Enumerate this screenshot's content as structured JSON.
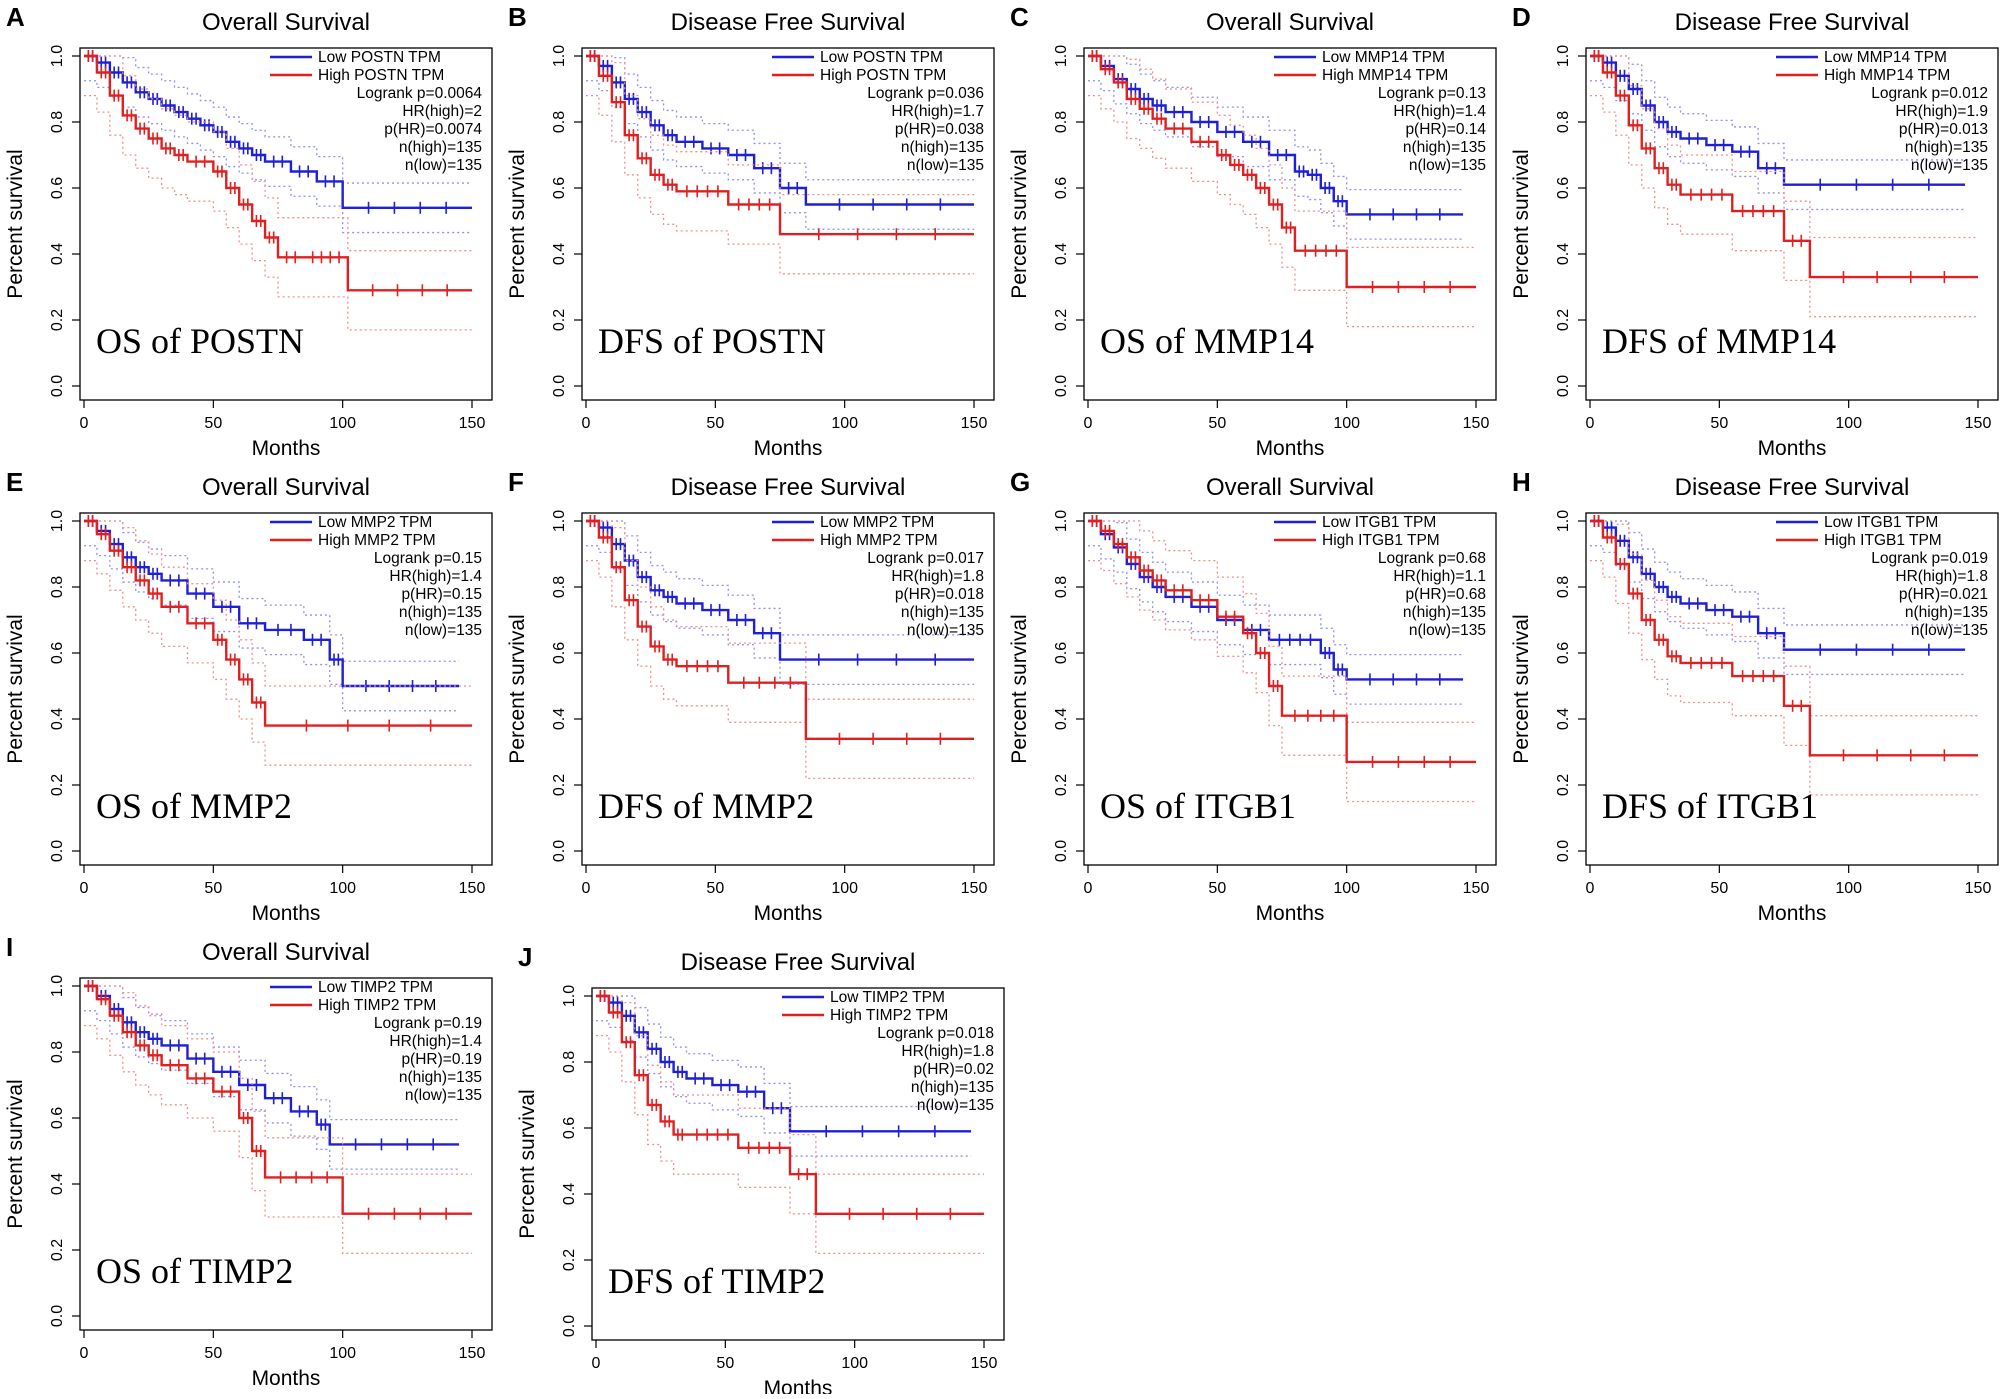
{
  "figure": {
    "colors": {
      "low": "#1f1fd6",
      "high": "#e02020",
      "low_ci": "#8f8ff0",
      "high_ci": "#f08f8f"
    }
  },
  "chart_data": [
    {
      "type": "line",
      "panel": "A",
      "title": "Overall Survival",
      "overlay": "OS of POSTN",
      "xlabel": "Months",
      "ylabel": "Percent survival",
      "xlim": [
        0,
        150
      ],
      "ylim": [
        0,
        1
      ],
      "xticks": [
        "0",
        "50",
        "100",
        "150"
      ],
      "yticks": [
        "0.0",
        "0.2",
        "0.4",
        "0.6",
        "0.8",
        "1.0"
      ],
      "legend": [
        "Low POSTN TPM",
        "High POSTN TPM"
      ],
      "stats": [
        "Logrank p=0.0064",
        "HR(high)=2",
        "p(HR)=0.0074",
        "n(high)=135",
        "n(low)=135"
      ],
      "series": [
        {
          "name": "Low POSTN TPM",
          "x": [
            0,
            5,
            10,
            15,
            20,
            25,
            30,
            35,
            40,
            45,
            50,
            55,
            60,
            65,
            70,
            80,
            90,
            100,
            150
          ],
          "values": [
            1,
            0.98,
            0.95,
            0.92,
            0.89,
            0.87,
            0.85,
            0.83,
            0.81,
            0.79,
            0.77,
            0.74,
            0.72,
            0.7,
            0.68,
            0.65,
            0.62,
            0.54,
            0.54
          ]
        },
        {
          "name": "High POSTN TPM",
          "x": [
            0,
            5,
            10,
            15,
            20,
            25,
            30,
            35,
            40,
            50,
            55,
            60,
            65,
            70,
            75,
            85,
            102,
            150
          ],
          "values": [
            1,
            0.95,
            0.88,
            0.82,
            0.78,
            0.75,
            0.72,
            0.7,
            0.68,
            0.65,
            0.6,
            0.55,
            0.5,
            0.45,
            0.39,
            0.39,
            0.29,
            0.29
          ]
        }
      ]
    },
    {
      "type": "line",
      "panel": "B",
      "title": "Disease Free Survival",
      "overlay": "DFS of POSTN",
      "xlabel": "Months",
      "ylabel": "Percent survival",
      "xlim": [
        0,
        150
      ],
      "ylim": [
        0,
        1
      ],
      "xticks": [
        "0",
        "50",
        "100",
        "150"
      ],
      "yticks": [
        "0.0",
        "0.2",
        "0.4",
        "0.6",
        "0.8",
        "1.0"
      ],
      "legend": [
        "Low POSTN TPM",
        "High POSTN TPM"
      ],
      "stats": [
        "Logrank p=0.036",
        "HR(high)=1.7",
        "p(HR)=0.038",
        "n(high)=135",
        "n(low)=135"
      ],
      "series": [
        {
          "name": "Low POSTN TPM",
          "x": [
            0,
            5,
            10,
            15,
            20,
            25,
            30,
            35,
            45,
            55,
            65,
            75,
            85,
            150
          ],
          "values": [
            1,
            0.97,
            0.92,
            0.87,
            0.83,
            0.79,
            0.76,
            0.74,
            0.72,
            0.7,
            0.66,
            0.6,
            0.55,
            0.55
          ]
        },
        {
          "name": "High POSTN TPM",
          "x": [
            0,
            5,
            10,
            15,
            20,
            25,
            30,
            35,
            55,
            75,
            150
          ],
          "values": [
            1,
            0.94,
            0.86,
            0.76,
            0.69,
            0.64,
            0.61,
            0.59,
            0.55,
            0.46,
            0.46
          ]
        }
      ]
    },
    {
      "type": "line",
      "panel": "C",
      "title": "Overall Survival",
      "overlay": "OS of MMP14",
      "xlabel": "Months",
      "ylabel": "Percent survival",
      "xlim": [
        0,
        150
      ],
      "ylim": [
        0,
        1
      ],
      "xticks": [
        "0",
        "50",
        "100",
        "150"
      ],
      "yticks": [
        "0.0",
        "0.2",
        "0.4",
        "0.6",
        "0.8",
        "1.0"
      ],
      "legend": [
        "Low MMP14 TPM",
        "High MMP14 TPM"
      ],
      "stats": [
        "Logrank p=0.13",
        "HR(high)=1.4",
        "p(HR)=0.14",
        "n(high)=135",
        "n(low)=135"
      ],
      "series": [
        {
          "name": "Low MMP14 TPM",
          "x": [
            0,
            5,
            10,
            15,
            20,
            25,
            30,
            40,
            50,
            60,
            70,
            80,
            85,
            90,
            95,
            100,
            145
          ],
          "values": [
            1,
            0.97,
            0.93,
            0.9,
            0.87,
            0.85,
            0.83,
            0.8,
            0.77,
            0.74,
            0.7,
            0.65,
            0.64,
            0.6,
            0.56,
            0.52,
            0.52
          ]
        },
        {
          "name": "High MMP14 TPM",
          "x": [
            0,
            5,
            10,
            15,
            20,
            25,
            30,
            40,
            50,
            55,
            60,
            65,
            70,
            75,
            80,
            100,
            150
          ],
          "values": [
            1,
            0.96,
            0.92,
            0.87,
            0.84,
            0.81,
            0.78,
            0.74,
            0.7,
            0.67,
            0.64,
            0.6,
            0.55,
            0.48,
            0.41,
            0.3,
            0.3
          ]
        }
      ]
    },
    {
      "type": "line",
      "panel": "D",
      "title": "Disease Free Survival",
      "overlay": "DFS of MMP14",
      "xlabel": "Months",
      "ylabel": "Percent survival",
      "xlim": [
        0,
        150
      ],
      "ylim": [
        0,
        1
      ],
      "xticks": [
        "0",
        "50",
        "100",
        "150"
      ],
      "yticks": [
        "0.0",
        "0.2",
        "0.4",
        "0.6",
        "0.8",
        "1.0"
      ],
      "legend": [
        "Low MMP14 TPM",
        "High MMP14 TPM"
      ],
      "stats": [
        "Logrank p=0.012",
        "HR(high)=1.9",
        "p(HR)=0.013",
        "n(high)=135",
        "n(low)=135"
      ],
      "series": [
        {
          "name": "Low MMP14 TPM",
          "x": [
            0,
            5,
            10,
            15,
            20,
            25,
            30,
            35,
            45,
            55,
            65,
            75,
            145
          ],
          "values": [
            1,
            0.98,
            0.94,
            0.9,
            0.85,
            0.8,
            0.77,
            0.75,
            0.73,
            0.71,
            0.66,
            0.61,
            0.61
          ]
        },
        {
          "name": "High MMP14 TPM",
          "x": [
            0,
            5,
            10,
            15,
            20,
            25,
            30,
            35,
            55,
            75,
            85,
            150
          ],
          "values": [
            1,
            0.95,
            0.88,
            0.79,
            0.72,
            0.66,
            0.61,
            0.58,
            0.53,
            0.44,
            0.33,
            0.33
          ]
        }
      ]
    },
    {
      "type": "line",
      "panel": "E",
      "title": "Overall Survival",
      "overlay": "OS of MMP2",
      "xlabel": "Months",
      "ylabel": "Percent survival",
      "xlim": [
        0,
        150
      ],
      "ylim": [
        0,
        1
      ],
      "xticks": [
        "0",
        "50",
        "100",
        "150"
      ],
      "yticks": [
        "0.0",
        "0.2",
        "0.4",
        "0.6",
        "0.8",
        "1.0"
      ],
      "legend": [
        "Low MMP2 TPM",
        "High MMP2 TPM"
      ],
      "stats": [
        "Logrank p=0.15",
        "HR(high)=1.4",
        "p(HR)=0.15",
        "n(high)=135",
        "n(low)=135"
      ],
      "series": [
        {
          "name": "Low MMP2 TPM",
          "x": [
            0,
            5,
            10,
            15,
            20,
            25,
            30,
            40,
            50,
            60,
            70,
            85,
            95,
            100,
            145
          ],
          "values": [
            1,
            0.97,
            0.93,
            0.89,
            0.86,
            0.84,
            0.82,
            0.78,
            0.74,
            0.69,
            0.67,
            0.64,
            0.58,
            0.5,
            0.5
          ]
        },
        {
          "name": "High MMP2 TPM",
          "x": [
            0,
            5,
            10,
            15,
            20,
            25,
            30,
            40,
            50,
            55,
            60,
            65,
            70,
            150
          ],
          "values": [
            1,
            0.96,
            0.91,
            0.86,
            0.82,
            0.78,
            0.74,
            0.69,
            0.64,
            0.58,
            0.52,
            0.45,
            0.38,
            0.38
          ]
        }
      ]
    },
    {
      "type": "line",
      "panel": "F",
      "title": "Disease Free Survival",
      "overlay": "DFS of MMP2",
      "xlabel": "Months",
      "ylabel": "Percent survival",
      "xlim": [
        0,
        150
      ],
      "ylim": [
        0,
        1
      ],
      "xticks": [
        "0",
        "50",
        "100",
        "150"
      ],
      "yticks": [
        "0.0",
        "0.2",
        "0.4",
        "0.6",
        "0.8",
        "1.0"
      ],
      "legend": [
        "Low MMP2 TPM",
        "High MMP2 TPM"
      ],
      "stats": [
        "Logrank p=0.017",
        "HR(high)=1.8",
        "p(HR)=0.018",
        "n(high)=135",
        "n(low)=135"
      ],
      "series": [
        {
          "name": "Low MMP2 TPM",
          "x": [
            0,
            5,
            10,
            15,
            20,
            25,
            30,
            35,
            45,
            55,
            65,
            75,
            150
          ],
          "values": [
            1,
            0.98,
            0.93,
            0.88,
            0.83,
            0.79,
            0.77,
            0.75,
            0.73,
            0.7,
            0.66,
            0.58,
            0.58
          ]
        },
        {
          "name": "High MMP2 TPM",
          "x": [
            0,
            5,
            10,
            15,
            20,
            25,
            30,
            35,
            55,
            85,
            150
          ],
          "values": [
            1,
            0.95,
            0.86,
            0.76,
            0.68,
            0.62,
            0.58,
            0.56,
            0.51,
            0.34,
            0.34
          ]
        }
      ]
    },
    {
      "type": "line",
      "panel": "G",
      "title": "Overall Survival",
      "overlay": "OS of ITGB1",
      "xlabel": "Months",
      "ylabel": "Percent survival",
      "xlim": [
        0,
        150
      ],
      "ylim": [
        0,
        1
      ],
      "xticks": [
        "0",
        "50",
        "100",
        "150"
      ],
      "yticks": [
        "0.0",
        "0.2",
        "0.4",
        "0.6",
        "0.8",
        "1.0"
      ],
      "legend": [
        "Low ITGB1 TPM",
        "High ITGB1 TPM"
      ],
      "stats": [
        "Logrank p=0.68",
        "HR(high)=1.1",
        "p(HR)=0.68",
        "n(high)=135",
        "n(low)=135"
      ],
      "series": [
        {
          "name": "Low ITGB1 TPM",
          "x": [
            0,
            5,
            10,
            15,
            20,
            25,
            30,
            40,
            50,
            60,
            70,
            90,
            95,
            100,
            145
          ],
          "values": [
            1,
            0.96,
            0.92,
            0.87,
            0.83,
            0.8,
            0.77,
            0.74,
            0.7,
            0.67,
            0.64,
            0.6,
            0.55,
            0.52,
            0.52
          ]
        },
        {
          "name": "High ITGB1 TPM",
          "x": [
            0,
            5,
            10,
            15,
            20,
            25,
            30,
            40,
            50,
            60,
            65,
            70,
            75,
            100,
            150
          ],
          "values": [
            1,
            0.97,
            0.93,
            0.89,
            0.85,
            0.82,
            0.79,
            0.76,
            0.71,
            0.66,
            0.6,
            0.5,
            0.41,
            0.27,
            0.27
          ]
        }
      ]
    },
    {
      "type": "line",
      "panel": "H",
      "title": "Disease Free Survival",
      "overlay": "DFS of ITGB1",
      "xlabel": "Months",
      "ylabel": "Percent survival",
      "xlim": [
        0,
        150
      ],
      "ylim": [
        0,
        1
      ],
      "xticks": [
        "0",
        "50",
        "100",
        "150"
      ],
      "yticks": [
        "0.0",
        "0.2",
        "0.4",
        "0.6",
        "0.8",
        "1.0"
      ],
      "legend": [
        "Low ITGB1 TPM",
        "High ITGB1 TPM"
      ],
      "stats": [
        "Logrank p=0.019",
        "HR(high)=1.8",
        "p(HR)=0.021",
        "n(high)=135",
        "n(low)=135"
      ],
      "series": [
        {
          "name": "Low ITGB1 TPM",
          "x": [
            0,
            5,
            10,
            15,
            20,
            25,
            30,
            35,
            45,
            55,
            65,
            75,
            145
          ],
          "values": [
            1,
            0.98,
            0.94,
            0.89,
            0.84,
            0.8,
            0.77,
            0.75,
            0.73,
            0.71,
            0.66,
            0.61,
            0.61
          ]
        },
        {
          "name": "High ITGB1 TPM",
          "x": [
            0,
            5,
            10,
            15,
            20,
            25,
            30,
            35,
            55,
            75,
            85,
            150
          ],
          "values": [
            1,
            0.95,
            0.87,
            0.78,
            0.7,
            0.64,
            0.59,
            0.57,
            0.53,
            0.44,
            0.29,
            0.29
          ]
        }
      ]
    },
    {
      "type": "line",
      "panel": "I",
      "title": "Overall Survival",
      "overlay": "OS of TIMP2",
      "xlabel": "Months",
      "ylabel": "Percent survival",
      "xlim": [
        0,
        150
      ],
      "ylim": [
        0,
        1
      ],
      "xticks": [
        "0",
        "50",
        "100",
        "150"
      ],
      "yticks": [
        "0.0",
        "0.2",
        "0.4",
        "0.6",
        "0.8",
        "1.0"
      ],
      "legend": [
        "Low TIMP2 TPM",
        "High TIMP2 TPM"
      ],
      "stats": [
        "Logrank p=0.19",
        "HR(high)=1.4",
        "p(HR)=0.19",
        "n(high)=135",
        "n(low)=135"
      ],
      "series": [
        {
          "name": "Low TIMP2 TPM",
          "x": [
            0,
            5,
            10,
            15,
            20,
            25,
            30,
            40,
            50,
            60,
            70,
            80,
            90,
            95,
            145
          ],
          "values": [
            1,
            0.97,
            0.93,
            0.89,
            0.86,
            0.84,
            0.82,
            0.78,
            0.74,
            0.7,
            0.66,
            0.62,
            0.58,
            0.52,
            0.52
          ]
        },
        {
          "name": "High TIMP2 TPM",
          "x": [
            0,
            5,
            10,
            15,
            20,
            25,
            30,
            40,
            50,
            60,
            65,
            70,
            100,
            150
          ],
          "values": [
            1,
            0.96,
            0.91,
            0.86,
            0.82,
            0.79,
            0.76,
            0.72,
            0.68,
            0.6,
            0.5,
            0.42,
            0.31,
            0.31
          ]
        }
      ]
    },
    {
      "type": "line",
      "panel": "J",
      "title": "Disease Free Survival",
      "overlay": "DFS of TIMP2",
      "xlabel": "Months",
      "ylabel": "Percent survival",
      "xlim": [
        0,
        150
      ],
      "ylim": [
        0,
        1
      ],
      "xticks": [
        "0",
        "50",
        "100",
        "150"
      ],
      "yticks": [
        "0.0",
        "0.2",
        "0.4",
        "0.6",
        "0.8",
        "1.0"
      ],
      "legend": [
        "Low TIMP2 TPM",
        "High TIMP2 TPM"
      ],
      "stats": [
        "Logrank p=0.018",
        "HR(high)=1.8",
        "p(HR)=0.02",
        "n(high)=135",
        "n(low)=135"
      ],
      "series": [
        {
          "name": "Low TIMP2 TPM",
          "x": [
            0,
            5,
            10,
            15,
            20,
            25,
            30,
            35,
            45,
            55,
            65,
            75,
            145
          ],
          "values": [
            1,
            0.98,
            0.94,
            0.89,
            0.84,
            0.8,
            0.77,
            0.75,
            0.73,
            0.71,
            0.66,
            0.59,
            0.59
          ]
        },
        {
          "name": "High TIMP2 TPM",
          "x": [
            0,
            5,
            10,
            15,
            20,
            25,
            30,
            35,
            55,
            75,
            85,
            150
          ],
          "values": [
            1,
            0.95,
            0.86,
            0.76,
            0.67,
            0.62,
            0.58,
            0.58,
            0.54,
            0.46,
            0.34,
            0.34
          ]
        }
      ]
    }
  ]
}
